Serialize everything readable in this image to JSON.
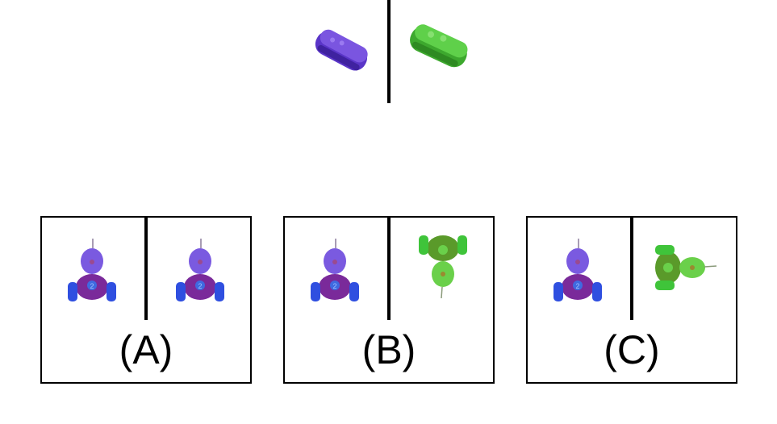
{
  "reference": {
    "left_object": "purple-flat-block",
    "right_object": "green-flat-block"
  },
  "options": [
    {
      "label": "(A)",
      "left": "purple-robot-upright",
      "right": "purple-robot-upright"
    },
    {
      "label": "(B)",
      "left": "purple-robot-upright",
      "right": "green-robot-upside-down"
    },
    {
      "label": "(C)",
      "left": "purple-robot-upright",
      "right": "green-robot-rotated-90"
    }
  ],
  "colors": {
    "purple": "#6a3fd0",
    "purple_dark": "#4b1f8f",
    "blue": "#2f4fe0",
    "green": "#4fc43a",
    "green_dark": "#2e8a22"
  }
}
